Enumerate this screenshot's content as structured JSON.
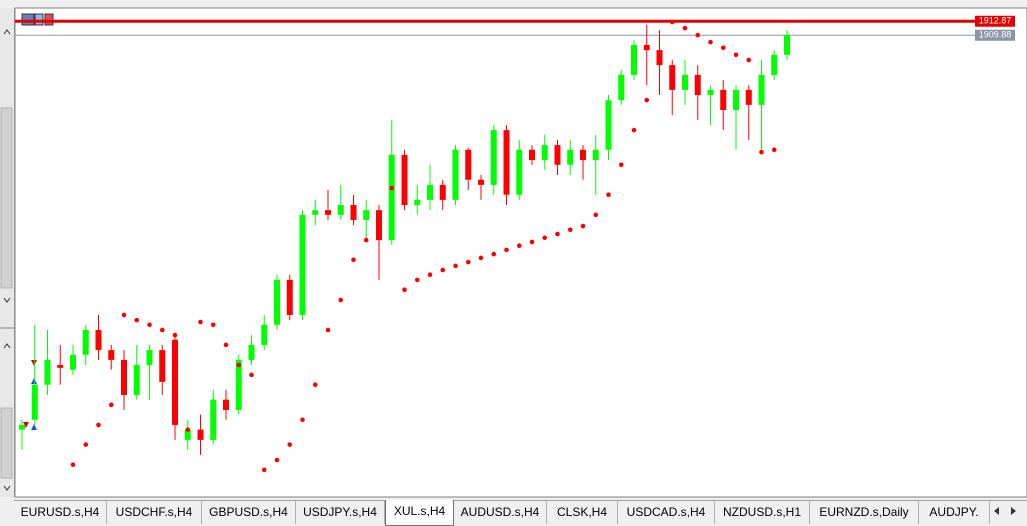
{
  "chart_data": {
    "type": "candlestick",
    "ylim": [
      1811.2,
      1915.7
    ],
    "bull_color": "#00ff00",
    "bear_color": "#ff0000",
    "sar_color": "#ff0000",
    "price_lines": [
      {
        "value": 1912.87,
        "color": "#e60000"
      },
      {
        "value": 1909.88,
        "color": "#8a96a6"
      }
    ],
    "open": [
      1825.6,
      1827.7,
      1835.2,
      1839.4,
      1838.4,
      1841.6,
      1846.9,
      1842.6,
      1840.5,
      1833.0,
      1839.4,
      1842.6,
      1844.8,
      1823.4,
      1825.6,
      1823.4,
      1832.0,
      1829.8,
      1840.5,
      1843.7,
      1848.0,
      1857.6,
      1850.1,
      1871.5,
      1872.5,
      1871.5,
      1873.6,
      1870.4,
      1872.5,
      1866.1,
      1884.3,
      1873.6,
      1874.7,
      1877.9,
      1874.7,
      1885.4,
      1879.0,
      1877.9,
      1889.6,
      1875.8,
      1885.4,
      1883.2,
      1886.4,
      1882.2,
      1885.4,
      1883.2,
      1885.4,
      1896.0,
      1901.4,
      1907.8,
      1906.7,
      1903.5,
      1898.2,
      1901.4,
      1897.1,
      1898.2,
      1893.9,
      1898.2,
      1895.0,
      1901.4,
      1905.7
    ],
    "high": [
      1827.7,
      1848.0,
      1846.9,
      1843.7,
      1843.7,
      1848.0,
      1850.1,
      1843.7,
      1842.6,
      1843.7,
      1843.7,
      1843.7,
      1845.8,
      1827.7,
      1828.8,
      1834.1,
      1834.1,
      1841.6,
      1845.8,
      1850.1,
      1858.7,
      1858.7,
      1872.5,
      1874.7,
      1876.8,
      1877.9,
      1875.8,
      1874.7,
      1873.6,
      1891.8,
      1885.4,
      1877.9,
      1882.2,
      1879.0,
      1886.4,
      1885.8,
      1880.0,
      1890.7,
      1890.7,
      1887.5,
      1886.4,
      1888.6,
      1887.5,
      1887.5,
      1886.4,
      1888.6,
      1897.1,
      1902.5,
      1908.9,
      1912.1,
      1911.0,
      1904.6,
      1904.6,
      1903.5,
      1899.2,
      1900.3,
      1899.2,
      1899.2,
      1904.6,
      1906.7,
      1911.0
    ],
    "low": [
      1821.3,
      1826.6,
      1833.0,
      1835.2,
      1837.3,
      1839.4,
      1840.5,
      1838.4,
      1829.8,
      1832.0,
      1832.0,
      1833.0,
      1823.4,
      1821.3,
      1820.2,
      1822.4,
      1827.7,
      1828.8,
      1839.4,
      1842.6,
      1846.9,
      1849.0,
      1849.0,
      1869.3,
      1870.4,
      1870.4,
      1869.3,
      1866.1,
      1857.6,
      1865.1,
      1872.5,
      1871.5,
      1872.5,
      1872.5,
      1873.6,
      1876.8,
      1874.7,
      1875.8,
      1873.6,
      1874.7,
      1882.2,
      1881.1,
      1880.0,
      1880.0,
      1879.0,
      1875.8,
      1883.2,
      1895.0,
      1900.3,
      1899.2,
      1897.1,
      1892.8,
      1895.0,
      1891.8,
      1890.7,
      1889.6,
      1885.4,
      1887.5,
      1884.3,
      1900.3,
      1904.6
    ],
    "close": [
      1826.6,
      1835.2,
      1840.5,
      1838.8,
      1841.6,
      1846.9,
      1842.6,
      1840.5,
      1833.0,
      1839.4,
      1842.6,
      1835.8,
      1826.6,
      1825.6,
      1823.4,
      1832.0,
      1829.8,
      1840.5,
      1843.7,
      1848.0,
      1857.6,
      1850.1,
      1871.5,
      1872.5,
      1871.5,
      1873.6,
      1870.4,
      1872.5,
      1866.1,
      1884.3,
      1873.6,
      1874.7,
      1877.9,
      1874.7,
      1885.4,
      1879.0,
      1877.9,
      1889.6,
      1875.8,
      1885.4,
      1883.2,
      1886.4,
      1882.2,
      1885.4,
      1883.2,
      1885.4,
      1896.0,
      1901.4,
      1907.8,
      1906.7,
      1903.5,
      1898.2,
      1901.4,
      1897.1,
      1898.2,
      1893.9,
      1898.2,
      1895.0,
      1901.4,
      1905.7,
      1909.9
    ],
    "sar": [
      null,
      null,
      null,
      null,
      1818.1,
      1822.4,
      1826.6,
      1830.9,
      1850.1,
      1849.0,
      1848.0,
      1846.9,
      1845.8,
      1825.6,
      1848.6,
      1848.0,
      1843.7,
      1839.4,
      1837.3,
      1817.0,
      1819.1,
      1822.4,
      1827.7,
      1835.2,
      1846.9,
      1853.3,
      1861.9,
      1866.1,
      1869.3,
      1877.2,
      1855.5,
      1857.6,
      1858.7,
      1859.7,
      1860.6,
      1861.4,
      1862.3,
      1863.1,
      1864.0,
      1864.9,
      1865.7,
      1866.6,
      1867.4,
      1868.3,
      1869.1,
      1871.5,
      1875.8,
      1882.2,
      1889.6,
      1896.0,
      null,
      1912.7,
      1911.4,
      1909.9,
      1908.4,
      1907.2,
      1905.7,
      1904.6,
      1884.9,
      1885.4,
      null
    ]
  },
  "tabs": [
    "EURUSD.s,H4",
    "USDCHF.s,H4",
    "GBPUSD.s,H4",
    "USDJPY.s,H4",
    "XUL.s,H4",
    "AUDUSD.s,H4",
    "CLSK,H4",
    "USDCAD.s,H4",
    "NZDUSD.s,H1",
    "EURNZD.s,Daily",
    "AUDJPY."
  ],
  "active_tab": 4
}
